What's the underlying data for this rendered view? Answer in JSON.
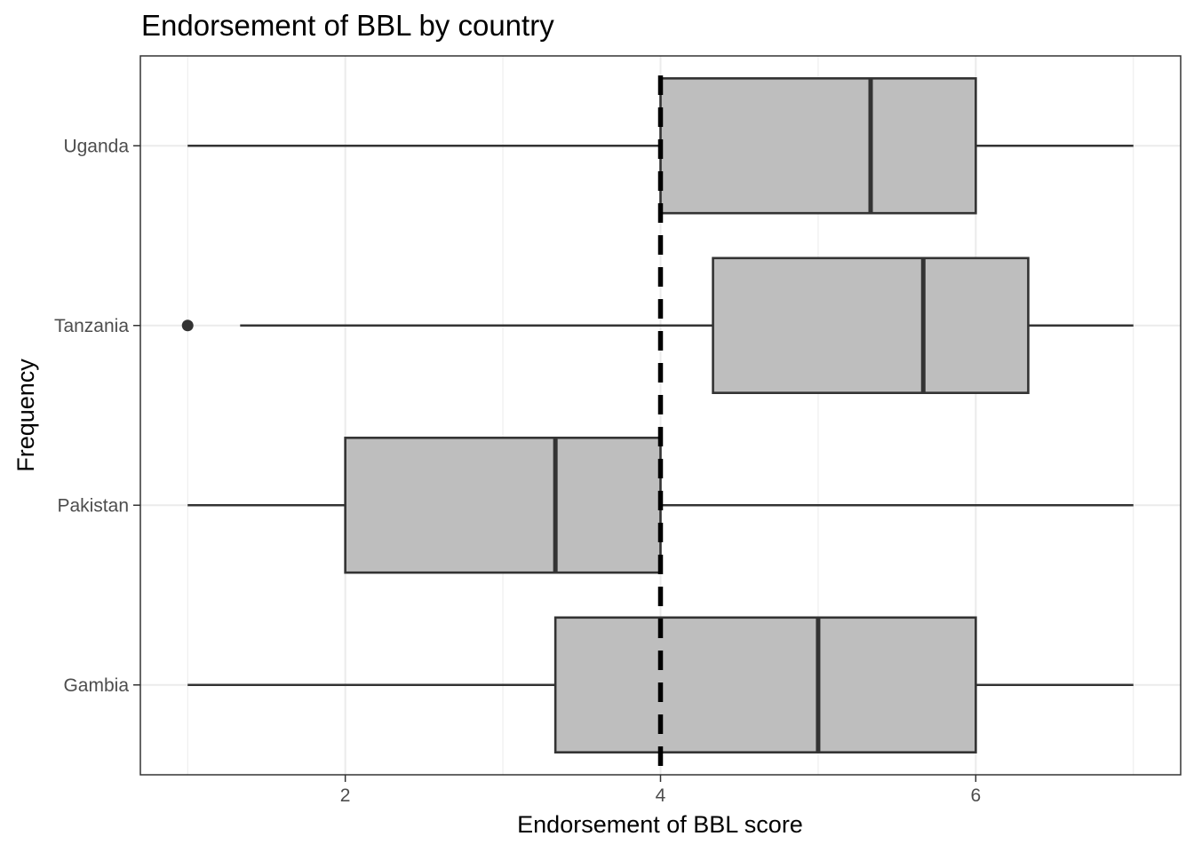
{
  "chart_data": {
    "type": "boxplot",
    "orientation": "horizontal",
    "title": "Endorsement of BBL by country",
    "xlabel": "Endorsement of BBL score",
    "ylabel": "Frequency",
    "xlim": [
      0.7,
      7.3
    ],
    "x_ticks": [
      2,
      4,
      6
    ],
    "grid": true,
    "reference_line": {
      "x": 4,
      "style": "dashed"
    },
    "categories": [
      "Gambia",
      "Pakistan",
      "Tanzania",
      "Uganda"
    ],
    "boxes": [
      {
        "name": "Gambia",
        "whisker_low": 1.0,
        "q1": 3.333,
        "median": 5.0,
        "q3": 6.0,
        "whisker_high": 7.0,
        "outliers": []
      },
      {
        "name": "Pakistan",
        "whisker_low": 1.0,
        "q1": 2.0,
        "median": 3.333,
        "q3": 4.0,
        "whisker_high": 7.0,
        "outliers": []
      },
      {
        "name": "Tanzania",
        "whisker_low": 1.333,
        "q1": 4.333,
        "median": 5.667,
        "q3": 6.333,
        "whisker_high": 7.0,
        "outliers": [
          1.0
        ]
      },
      {
        "name": "Uganda",
        "whisker_low": 1.0,
        "q1": 4.0,
        "median": 5.333,
        "q3": 6.0,
        "whisker_high": 7.0,
        "outliers": []
      }
    ],
    "colors": {
      "box_fill": "#bebebe",
      "box_line": "#333333",
      "reference_line": "#000000",
      "grid": "#ebebeb",
      "panel_border": "#333333"
    }
  }
}
